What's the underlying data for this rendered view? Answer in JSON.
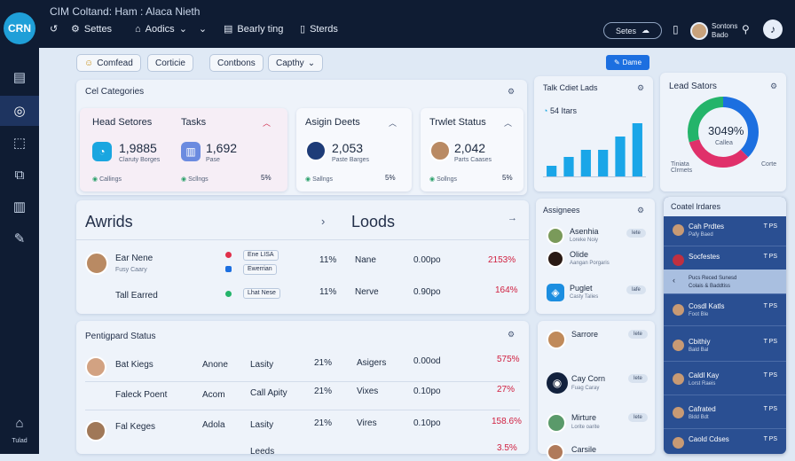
{
  "app": {
    "logo": "CRN",
    "title": "CIM Coltand: Ham : Alaca Nieth"
  },
  "nav": [
    {
      "label": "Settes",
      "icon": "gear-icon"
    },
    {
      "label": "Aodics",
      "icon": "bank-icon"
    },
    {
      "label": "Bearly ting",
      "icon": "list-icon"
    },
    {
      "label": "Sterds",
      "icon": "document-icon"
    }
  ],
  "topbar": {
    "button_label": "Setes",
    "user_line1": "Sontons",
    "user_line2": "Bado"
  },
  "sidebar": {
    "home_label": "Tulad"
  },
  "filters": [
    "Comfead",
    "Corticie",
    "Contbons",
    "Capthy"
  ],
  "primary_button": "Dame",
  "cat_panel": {
    "title": "Cel Categories"
  },
  "cards": [
    {
      "title": "Head Setores",
      "title2": "Tasks",
      "value1": "1,9885",
      "sub1": "Claruty Borges",
      "value2": "1,692",
      "sub2": "Pase",
      "foot1": "Callings",
      "foot2": "Scllngs",
      "pct": "5%"
    },
    {
      "title": "Asigin Deets",
      "value1": "2,053",
      "sub1": "Paste Barges",
      "foot1": "Sallngs",
      "pct": "5%"
    },
    {
      "title": "Trwlet Status",
      "value1": "2,042",
      "sub1": "Parts Caases",
      "foot1": "Sollngs",
      "pct": "5%"
    }
  ],
  "tasks_chart": {
    "title": "Talk Cdiet Lads",
    "value": "54 Itars"
  },
  "chart_data": {
    "type": "bar",
    "categories": [
      "",
      "",
      "",
      "",
      "",
      ""
    ],
    "values": [
      12,
      22,
      30,
      30,
      45,
      60
    ],
    "ylim": [
      0,
      60
    ]
  },
  "donut": {
    "title": "Lead Sators",
    "value": "3049%",
    "sub": "Callea",
    "legend_left": "Tiniata\nClrmets",
    "legend_right": "Corte"
  },
  "avrids": {
    "title": "Awrids",
    "title2": "Loods",
    "rows": [
      {
        "name": "Ear Nene",
        "sub": "Fusy Caary",
        "tag1": "Ene LISA",
        "tag2": "Ewerrian",
        "pct": "11%",
        "col": "Nane",
        "amt": "0.00po",
        "delta": "2153%"
      },
      {
        "name": "Tall Earred",
        "sub": "",
        "tag1": "Lhat Nese",
        "tag2": "",
        "pct": "11%",
        "col": "Nerve",
        "amt": "0.90po",
        "delta": "164%"
      }
    ]
  },
  "pending": {
    "title": "Pentigpard Status",
    "rows": [
      {
        "name": "Bat Kiegs",
        "c1": "Anone",
        "c2": "Lasity",
        "pct": "21%",
        "c3": "Asigers",
        "amt": "0.00od",
        "delta": "575%"
      },
      {
        "name": "Faleck Poent",
        "c1": "Acom",
        "c2": "Call Apity",
        "pct": "21%",
        "c3": "Vixes",
        "amt": "0.10po",
        "delta": "27%"
      },
      {
        "name": "Fal Keges",
        "c1": "Adola",
        "c2": "Lasity",
        "pct": "21%",
        "c3": "Vires",
        "amt": "0.10po",
        "delta": "158.6%"
      },
      {
        "name": "",
        "c1": "",
        "c2": "Leeds",
        "pct": "",
        "c3": "",
        "amt": "",
        "delta": "3.5%"
      }
    ]
  },
  "assignees": {
    "title": "Assignees",
    "rows": [
      {
        "name": "Asenhia",
        "sub": "Loreke Noiy",
        "pill": "lete"
      },
      {
        "name": "Olide",
        "sub": "Aangan Porgaris",
        "pill": ""
      },
      {
        "name": "Puglet",
        "sub": "Casty Talies",
        "pill": "lafe"
      }
    ]
  },
  "contacts": {
    "rows": [
      {
        "name": "Sarrore",
        "sub": "",
        "pill": "lete"
      },
      {
        "name": "Cay Corn",
        "sub": "Fuag Caray",
        "pill": "lete"
      },
      {
        "name": "Mirture",
        "sub": "Lorite oarite",
        "pill": "lete"
      },
      {
        "name": "Carsile",
        "sub": "",
        "pill": ""
      }
    ]
  },
  "blue_panel": {
    "title": "Coatel lrdares",
    "rows": [
      {
        "name": "Cah Prdtes",
        "sub": "Pafy Baed",
        "val": "T PS"
      },
      {
        "name": "Socfestes",
        "sub": "",
        "val": "T PS"
      },
      {
        "name": "Pucs Reced Sunesd",
        "sub": "Colais & Baddtiss",
        "val": ""
      },
      {
        "name": "Cosdl Katls",
        "sub": "Foot Ble",
        "val": "T PS"
      },
      {
        "name": "Cbithiy",
        "sub": "Bald Bal",
        "val": "T PS"
      },
      {
        "name": "Caldl Kay",
        "sub": "Lorst Raeis",
        "val": "T PS"
      },
      {
        "name": "Cafrated",
        "sub": "Bldd Bdt",
        "val": "T PS"
      },
      {
        "name": "Caold Cdses",
        "sub": "",
        "val": "T PS"
      }
    ]
  }
}
